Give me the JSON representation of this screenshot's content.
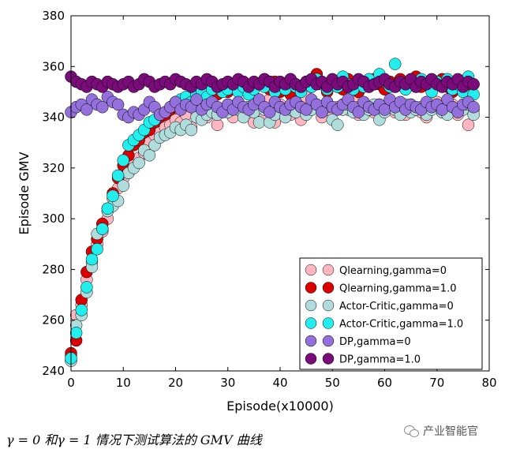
{
  "chart_data": {
    "type": "scatter",
    "title": "",
    "xlabel": "Episode(x10000)",
    "ylabel": "Episode GMV",
    "xlim": [
      0,
      80
    ],
    "ylim": [
      240,
      380
    ],
    "xticks": [
      0,
      10,
      20,
      30,
      40,
      50,
      60,
      70,
      80
    ],
    "yticks": [
      240,
      260,
      280,
      300,
      320,
      340,
      360,
      380
    ],
    "legend_position": "lower-right",
    "grid": false,
    "series": [
      {
        "name": "Qlearning,gamma=0",
        "color": "#ffb6c1",
        "x": [
          0,
          1,
          2,
          3,
          4,
          5,
          6,
          7,
          8,
          9,
          10,
          11,
          12,
          13,
          14,
          15,
          16,
          17,
          18,
          19,
          20,
          21,
          22,
          23,
          24,
          25,
          26,
          27,
          28,
          29,
          30,
          31,
          32,
          33,
          34,
          35,
          36,
          37,
          38,
          39,
          40,
          41,
          42,
          43,
          44,
          45,
          46,
          47,
          48,
          49,
          50,
          51,
          52,
          53,
          54,
          55,
          56,
          57,
          58,
          59,
          60,
          61,
          62,
          63,
          64,
          65,
          66,
          67,
          68,
          69,
          70,
          71,
          72,
          73,
          74,
          75,
          76,
          77
        ],
        "y": [
          246,
          262,
          266,
          276,
          283,
          290,
          295,
          300,
          308,
          312,
          316,
          318,
          321,
          324,
          326,
          330,
          333,
          334,
          336,
          337,
          339,
          338,
          341,
          336,
          342,
          343,
          340,
          344,
          337,
          343,
          345,
          340,
          346,
          341,
          344,
          338,
          343,
          340,
          347,
          338,
          345,
          343,
          341,
          345,
          339,
          348,
          343,
          344,
          340,
          346,
          342,
          344,
          345,
          343,
          346,
          341,
          344,
          343,
          342,
          345,
          343,
          346,
          342,
          344,
          341,
          345,
          343,
          342,
          340,
          344,
          346,
          342,
          343,
          345,
          341,
          344,
          337,
          343
        ]
      },
      {
        "name": "Qlearning,gamma=1.0",
        "color": "#dd0000",
        "x": [
          0,
          1,
          2,
          3,
          4,
          5,
          6,
          7,
          8,
          9,
          10,
          11,
          12,
          13,
          14,
          15,
          16,
          17,
          18,
          19,
          20,
          21,
          22,
          23,
          24,
          25,
          26,
          27,
          28,
          29,
          30,
          31,
          32,
          33,
          34,
          35,
          36,
          37,
          38,
          39,
          40,
          41,
          42,
          43,
          44,
          45,
          46,
          47,
          48,
          49,
          50,
          51,
          52,
          53,
          54,
          55,
          56,
          57,
          58,
          59,
          60,
          61,
          62,
          63,
          64,
          65,
          66,
          67,
          68,
          69,
          70,
          71,
          72,
          73,
          74,
          75,
          76,
          77
        ],
        "y": [
          247,
          252,
          268,
          279,
          287,
          292,
          298,
          304,
          310,
          316,
          321,
          325,
          329,
          331,
          334,
          335,
          338,
          340,
          341,
          343,
          344,
          346,
          345,
          348,
          347,
          349,
          348,
          350,
          349,
          351,
          350,
          352,
          351,
          353,
          352,
          348,
          353,
          355,
          351,
          354,
          350,
          352,
          349,
          353,
          351,
          354,
          352,
          357,
          353,
          350,
          354,
          352,
          351,
          355,
          353,
          350,
          354,
          352,
          355,
          353,
          351,
          354,
          352,
          355,
          351,
          353,
          356,
          352,
          354,
          351,
          353,
          355,
          352,
          350,
          354,
          352,
          350,
          353
        ]
      },
      {
        "name": "Actor-Critic,gamma=0",
        "color": "#b0dcdc",
        "x": [
          0,
          1,
          2,
          3,
          4,
          5,
          6,
          7,
          8,
          9,
          10,
          11,
          12,
          13,
          14,
          15,
          16,
          17,
          18,
          19,
          20,
          21,
          22,
          23,
          24,
          25,
          26,
          27,
          28,
          29,
          30,
          31,
          32,
          33,
          34,
          35,
          36,
          37,
          38,
          39,
          40,
          41,
          42,
          43,
          44,
          45,
          46,
          47,
          48,
          49,
          50,
          51,
          52,
          53,
          54,
          55,
          56,
          57,
          58,
          59,
          60,
          61,
          62,
          63,
          64,
          65,
          66,
          67,
          68,
          69,
          70,
          71,
          72,
          73,
          74,
          75,
          76,
          77
        ],
        "y": [
          244,
          258,
          262,
          271,
          281,
          294,
          296,
          303,
          305,
          307,
          313,
          318,
          320,
          322,
          327,
          325,
          329,
          332,
          333,
          334,
          336,
          335,
          337,
          335,
          340,
          339,
          341,
          342,
          341,
          343,
          342,
          344,
          343,
          340,
          344,
          342,
          338,
          343,
          338,
          341,
          344,
          340,
          343,
          342,
          344,
          341,
          343,
          345,
          342,
          344,
          339,
          337,
          343,
          345,
          342,
          344,
          341,
          343,
          345,
          339,
          342,
          344,
          343,
          341,
          345,
          342,
          343,
          344,
          341,
          343,
          345,
          342,
          341,
          344,
          342,
          343,
          345,
          341
        ]
      },
      {
        "name": "Actor-Critic,gamma=1.0",
        "color": "#22eeee",
        "x": [
          0,
          1,
          2,
          3,
          4,
          5,
          6,
          7,
          8,
          9,
          10,
          11,
          12,
          13,
          14,
          15,
          16,
          17,
          18,
          19,
          20,
          21,
          22,
          23,
          24,
          25,
          26,
          27,
          28,
          29,
          30,
          31,
          32,
          33,
          34,
          35,
          36,
          37,
          38,
          39,
          40,
          41,
          42,
          43,
          44,
          45,
          46,
          47,
          48,
          49,
          50,
          51,
          52,
          53,
          54,
          55,
          56,
          57,
          58,
          59,
          60,
          61,
          62,
          63,
          64,
          65,
          66,
          67,
          68,
          69,
          70,
          71,
          72,
          73,
          74,
          75,
          76,
          77
        ],
        "y": [
          245,
          255,
          264,
          273,
          284,
          288,
          296,
          304,
          309,
          317,
          323,
          329,
          331,
          333,
          335,
          338,
          339,
          341,
          342,
          344,
          346,
          347,
          348,
          346,
          349,
          350,
          348,
          351,
          352,
          350,
          351,
          353,
          350,
          352,
          349,
          351,
          353,
          352,
          354,
          350,
          353,
          351,
          355,
          352,
          350,
          354,
          352,
          355,
          353,
          351,
          354,
          352,
          356,
          353,
          351,
          354,
          352,
          355,
          353,
          357,
          354,
          352,
          361,
          353,
          351,
          354,
          352,
          355,
          353,
          350,
          354,
          352,
          355,
          351,
          353,
          350,
          356,
          349
        ]
      },
      {
        "name": "DP,gamma=0",
        "color": "#9370db",
        "x": [
          0,
          1,
          2,
          3,
          4,
          5,
          6,
          7,
          8,
          9,
          10,
          11,
          12,
          13,
          14,
          15,
          16,
          17,
          18,
          19,
          20,
          21,
          22,
          23,
          24,
          25,
          26,
          27,
          28,
          29,
          30,
          31,
          32,
          33,
          34,
          35,
          36,
          37,
          38,
          39,
          40,
          41,
          42,
          43,
          44,
          45,
          46,
          47,
          48,
          49,
          50,
          51,
          52,
          53,
          54,
          55,
          56,
          57,
          58,
          59,
          60,
          61,
          62,
          63,
          64,
          65,
          66,
          67,
          68,
          69,
          70,
          71,
          72,
          73,
          74,
          75,
          76,
          77
        ],
        "y": [
          342,
          344,
          345,
          343,
          347,
          345,
          344,
          348,
          346,
          345,
          341,
          340,
          342,
          341,
          343,
          346,
          344,
          341,
          342,
          344,
          346,
          343,
          345,
          344,
          347,
          343,
          345,
          346,
          344,
          342,
          345,
          343,
          346,
          344,
          343,
          345,
          347,
          344,
          342,
          346,
          344,
          343,
          345,
          346,
          344,
          343,
          347,
          345,
          342,
          346,
          344,
          343,
          345,
          347,
          344,
          342,
          346,
          344,
          343,
          345,
          343,
          347,
          344,
          346,
          343,
          345,
          344,
          343,
          346,
          344,
          345,
          343,
          347,
          344,
          342,
          345,
          346,
          344
        ]
      },
      {
        "name": "DP,gamma=1.0",
        "color": "#7b0a7b",
        "x": [
          0,
          1,
          2,
          3,
          4,
          5,
          6,
          7,
          8,
          9,
          10,
          11,
          12,
          13,
          14,
          15,
          16,
          17,
          18,
          19,
          20,
          21,
          22,
          23,
          24,
          25,
          26,
          27,
          28,
          29,
          30,
          31,
          32,
          33,
          34,
          35,
          36,
          37,
          38,
          39,
          40,
          41,
          42,
          43,
          44,
          45,
          46,
          47,
          48,
          49,
          50,
          51,
          52,
          53,
          54,
          55,
          56,
          57,
          58,
          59,
          60,
          61,
          62,
          63,
          64,
          65,
          66,
          67,
          68,
          69,
          70,
          71,
          72,
          73,
          74,
          75,
          76,
          77
        ],
        "y": [
          356,
          354,
          353,
          352,
          354,
          353,
          352,
          354,
          353,
          352,
          353,
          354,
          352,
          353,
          355,
          354,
          352,
          353,
          354,
          353,
          355,
          354,
          353,
          352,
          354,
          353,
          355,
          354,
          352,
          353,
          354,
          353,
          355,
          354,
          352,
          354,
          353,
          355,
          354,
          352,
          354,
          353,
          355,
          353,
          352,
          354,
          355,
          353,
          354,
          352,
          355,
          353,
          354,
          352,
          353,
          355,
          354,
          352,
          353,
          354,
          355,
          353,
          352,
          354,
          353,
          355,
          352,
          354,
          353,
          355,
          353,
          352,
          354,
          353,
          355,
          352,
          354,
          353
        ]
      }
    ]
  },
  "caption": "γ = 0 和γ = 1 情况下测试算法的 GMV 曲线",
  "watermark": {
    "icon": "wechat-icon",
    "text": "产业智能官"
  }
}
